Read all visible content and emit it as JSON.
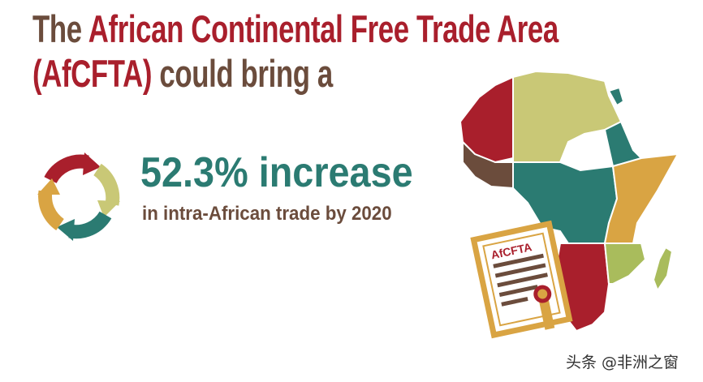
{
  "headline": {
    "line1_prefix": "The",
    "line1_highlight": "African Continental Free Trade Area",
    "line2_highlight": "(AfCFTA)",
    "line2_suffix": "could bring a"
  },
  "stat": {
    "value": "52.3% increase",
    "description": "in intra-African trade by 2020"
  },
  "certificate": {
    "label": "AfCFTA"
  },
  "watermark": "头条 @非洲之窗",
  "icons": [
    "cycle-arrows-icon",
    "africa-puzzle-map",
    "certificate-icon"
  ],
  "colors": {
    "brown": "#6b4c3c",
    "red": "#a91f2c",
    "teal": "#2b7b72",
    "olive": "#c9c876",
    "gold": "#d9a443",
    "green": "#a9bc5c"
  }
}
